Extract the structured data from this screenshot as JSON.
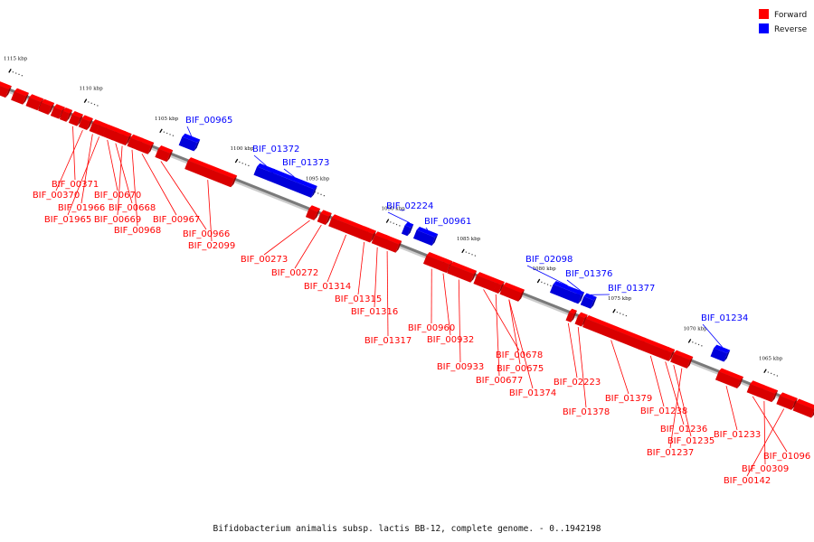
{
  "caption": "Bifidobacterium animalis subsp. lactis BB-12, complete genome. - 0..1942198",
  "legend": {
    "forward_label": "Forward",
    "reverse_label": "Reverse",
    "forward_color": "#ff0000",
    "reverse_color": "#0000ff"
  },
  "ticks": [
    {
      "kbp": 1115,
      "label": "1115 kbp"
    },
    {
      "kbp": 1110,
      "label": "1110 kbp"
    },
    {
      "kbp": 1105,
      "label": "1105 kbp"
    },
    {
      "kbp": 1100,
      "label": "1100 kbp"
    },
    {
      "kbp": 1095,
      "label": "1095 kbp"
    },
    {
      "kbp": 1090,
      "label": "1090 kbp"
    },
    {
      "kbp": 1085,
      "label": "1085 kbp"
    },
    {
      "kbp": 1080,
      "label": "1080 kbp"
    },
    {
      "kbp": 1075,
      "label": "1075 kbp"
    },
    {
      "kbp": 1070,
      "label": "1070 kbp"
    },
    {
      "kbp": 1065,
      "label": "1065 kbp"
    }
  ],
  "genes": [
    {
      "id": "BIF_00371",
      "strand": "forward"
    },
    {
      "id": "BIF_00370",
      "strand": "forward"
    },
    {
      "id": "BIF_01966",
      "strand": "forward"
    },
    {
      "id": "BIF_01965",
      "strand": "forward"
    },
    {
      "id": "BIF_00670",
      "strand": "forward"
    },
    {
      "id": "BIF_00668",
      "strand": "forward"
    },
    {
      "id": "BIF_00669",
      "strand": "forward"
    },
    {
      "id": "BIF_00968",
      "strand": "forward"
    },
    {
      "id": "BIF_00967",
      "strand": "forward"
    },
    {
      "id": "BIF_00966",
      "strand": "forward"
    },
    {
      "id": "BIF_00965",
      "strand": "reverse"
    },
    {
      "id": "BIF_02099",
      "strand": "forward"
    },
    {
      "id": "BIF_01372",
      "strand": "reverse"
    },
    {
      "id": "BIF_01373",
      "strand": "reverse"
    },
    {
      "id": "BIF_00273",
      "strand": "forward"
    },
    {
      "id": "BIF_00272",
      "strand": "forward"
    },
    {
      "id": "BIF_01314",
      "strand": "forward"
    },
    {
      "id": "BIF_01315",
      "strand": "forward"
    },
    {
      "id": "BIF_01316",
      "strand": "forward"
    },
    {
      "id": "BIF_01317",
      "strand": "forward"
    },
    {
      "id": "BIF_02224",
      "strand": "reverse"
    },
    {
      "id": "BIF_00961",
      "strand": "reverse"
    },
    {
      "id": "BIF_00960",
      "strand": "forward"
    },
    {
      "id": "BIF_00932",
      "strand": "forward"
    },
    {
      "id": "BIF_00933",
      "strand": "forward"
    },
    {
      "id": "BIF_00678",
      "strand": "forward"
    },
    {
      "id": "BIF_00677",
      "strand": "forward"
    },
    {
      "id": "BIF_00675",
      "strand": "forward"
    },
    {
      "id": "BIF_01374",
      "strand": "forward"
    },
    {
      "id": "BIF_02098",
      "strand": "reverse"
    },
    {
      "id": "BIF_01376",
      "strand": "reverse"
    },
    {
      "id": "BIF_01377",
      "strand": "reverse"
    },
    {
      "id": "BIF_02223",
      "strand": "forward"
    },
    {
      "id": "BIF_01378",
      "strand": "forward"
    },
    {
      "id": "BIF_01379",
      "strand": "forward"
    },
    {
      "id": "BIF_01238",
      "strand": "forward"
    },
    {
      "id": "BIF_01236",
      "strand": "forward"
    },
    {
      "id": "BIF_01235",
      "strand": "forward"
    },
    {
      "id": "BIF_01237",
      "strand": "forward"
    },
    {
      "id": "BIF_01234",
      "strand": "reverse"
    },
    {
      "id": "BIF_01233",
      "strand": "forward"
    },
    {
      "id": "BIF_01096",
      "strand": "forward"
    },
    {
      "id": "BIF_00309",
      "strand": "forward"
    },
    {
      "id": "BIF_00142",
      "strand": "forward"
    }
  ]
}
